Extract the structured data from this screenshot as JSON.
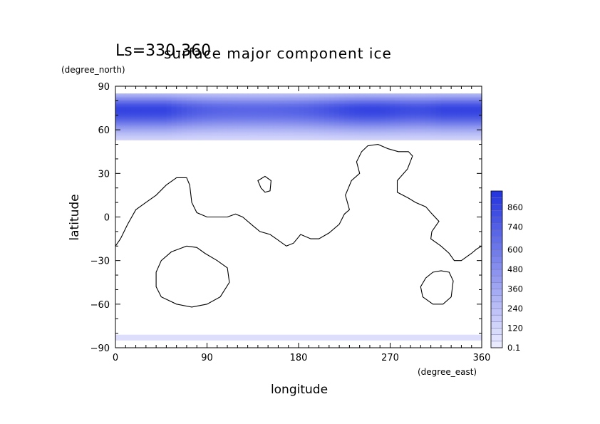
{
  "chart_data": {
    "type": "heatmap",
    "title": "surface major component ice",
    "subtitle": "Ls=330-360",
    "xlabel": "longitude",
    "xunit": "(degree_east)",
    "ylabel": "latitude",
    "yunit": "(degree_north)",
    "xlim": [
      0,
      360
    ],
    "ylim": [
      -90,
      90
    ],
    "xticks": [
      "0",
      "90",
      "180",
      "270",
      "360"
    ],
    "yticks": [
      "90",
      "60",
      "30",
      "0",
      "−30",
      "−60",
      "−90"
    ],
    "colorbar": {
      "labels": [
        "0.1",
        "120",
        "240",
        "360",
        "480",
        "600",
        "740",
        "860"
      ],
      "low_color": "#eeeeff",
      "high_color": "#2233dd",
      "max_value": 960
    },
    "north_cap": {
      "lat_range": [
        53,
        85
      ],
      "peak_lat": 74,
      "peak_value": 800,
      "peak_longitudes": [
        20,
        250,
        355
      ]
    },
    "south_cap": {
      "lat_range": [
        -85,
        -81
      ],
      "value": 80
    },
    "coastlines": [
      [
        [
          0,
          -20
        ],
        [
          5,
          -15
        ],
        [
          12,
          -5
        ],
        [
          20,
          5
        ],
        [
          30,
          10
        ],
        [
          40,
          15
        ],
        [
          50,
          22
        ],
        [
          60,
          27
        ],
        [
          70,
          27
        ],
        [
          73,
          22
        ],
        [
          75,
          10
        ],
        [
          80,
          3
        ],
        [
          90,
          0
        ],
        [
          100,
          0
        ],
        [
          110,
          0
        ],
        [
          118,
          2
        ],
        [
          125,
          0
        ],
        [
          135,
          -6
        ],
        [
          142,
          -10
        ],
        [
          152,
          -12
        ],
        [
          158,
          -15
        ],
        [
          168,
          -20
        ],
        [
          175,
          -18
        ],
        [
          182,
          -12
        ],
        [
          192,
          -15
        ],
        [
          200,
          -15
        ],
        [
          210,
          -11
        ],
        [
          220,
          -5
        ],
        [
          225,
          2
        ],
        [
          230,
          5
        ],
        [
          226,
          15
        ],
        [
          232,
          25
        ],
        [
          240,
          30
        ],
        [
          237,
          38
        ],
        [
          242,
          45
        ],
        [
          248,
          49
        ],
        [
          258,
          50
        ],
        [
          268,
          47
        ],
        [
          278,
          45
        ],
        [
          288,
          45
        ],
        [
          292,
          42
        ],
        [
          287,
          33
        ],
        [
          277,
          25
        ],
        [
          277,
          17
        ],
        [
          288,
          13
        ],
        [
          295,
          10
        ],
        [
          305,
          7
        ],
        [
          310,
          3
        ],
        [
          318,
          -3
        ],
        [
          311,
          -10
        ],
        [
          310,
          -15
        ],
        [
          320,
          -20
        ],
        [
          328,
          -25
        ],
        [
          333,
          -30
        ],
        [
          340,
          -30
        ],
        [
          350,
          -25
        ],
        [
          355,
          -22
        ],
        [
          360,
          -20
        ]
      ],
      [
        [
          143,
          20
        ],
        [
          140,
          25
        ],
        [
          147,
          28
        ],
        [
          153,
          25
        ],
        [
          152,
          18
        ],
        [
          147,
          17
        ],
        [
          143,
          20
        ]
      ],
      [
        [
          70,
          -20
        ],
        [
          80,
          -21
        ],
        [
          88,
          -25
        ],
        [
          100,
          -30
        ],
        [
          110,
          -35
        ],
        [
          112,
          -45
        ],
        [
          103,
          -55
        ],
        [
          90,
          -60
        ],
        [
          75,
          -62
        ],
        [
          60,
          -60
        ],
        [
          45,
          -55
        ],
        [
          40,
          -48
        ],
        [
          40,
          -38
        ],
        [
          45,
          -30
        ],
        [
          55,
          -24
        ],
        [
          70,
          -20
        ]
      ],
      [
        [
          320,
          -37
        ],
        [
          328,
          -38
        ],
        [
          332,
          -44
        ],
        [
          330,
          -55
        ],
        [
          322,
          -60
        ],
        [
          312,
          -60
        ],
        [
          302,
          -55
        ],
        [
          300,
          -48
        ],
        [
          305,
          -42
        ],
        [
          312,
          -38
        ],
        [
          320,
          -37
        ]
      ]
    ]
  }
}
